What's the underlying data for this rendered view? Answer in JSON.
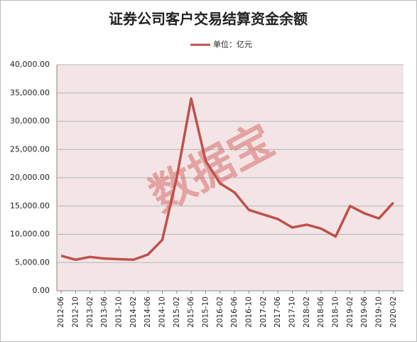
{
  "chart_data": {
    "type": "line",
    "title": "证券公司客户交易结算资金余额",
    "watermark": "数据宝",
    "categories": [
      "2012-06",
      "2012-10",
      "2013-02",
      "2013-06",
      "2013-10",
      "2014-02",
      "2014-06",
      "2014-10",
      "2015-02",
      "2015-06",
      "2015-10",
      "2016-02",
      "2016-06",
      "2016-10",
      "2017-02",
      "2017-06",
      "2017-10",
      "2018-02",
      "2018-06",
      "2018-10",
      "2019-02",
      "2019-06",
      "2019-10",
      "2020-02"
    ],
    "series": [
      {
        "name": "单位：亿元",
        "color": "#c0504d",
        "values": [
          6200,
          5500,
          6000,
          5700,
          5600,
          5500,
          6400,
          9000,
          20000,
          34000,
          23000,
          19000,
          17400,
          14300,
          13500,
          12700,
          11200,
          11700,
          11000,
          9600,
          15000,
          13700,
          12800,
          15600
        ]
      }
    ],
    "ylim": [
      0,
      40000
    ],
    "yticks": [
      {
        "value": 0,
        "label": "0.00"
      },
      {
        "value": 5000,
        "label": "5,000.00"
      },
      {
        "value": 10000,
        "label": "10,000.00"
      },
      {
        "value": 15000,
        "label": "15,000.00"
      },
      {
        "value": 20000,
        "label": "20,000.00"
      },
      {
        "value": 25000,
        "label": "25,000.00"
      },
      {
        "value": 30000,
        "label": "30,000.00"
      },
      {
        "value": 35000,
        "label": "35,000.00"
      },
      {
        "value": 40000,
        "label": "40,000.00"
      }
    ],
    "grid": true,
    "background": "#f3e5e5"
  }
}
